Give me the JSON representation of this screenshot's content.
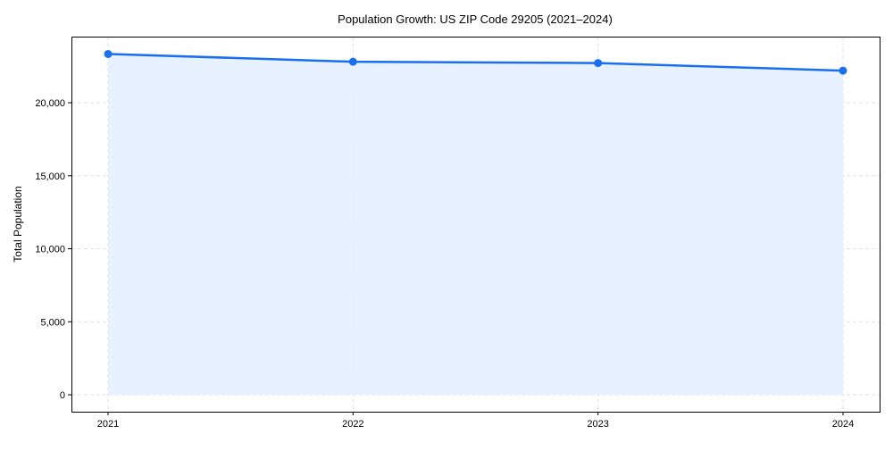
{
  "chart_data": {
    "type": "area",
    "title": "Population Growth: US ZIP Code 29205 (2021–2024)",
    "xlabel": "",
    "ylabel": "Total Population",
    "categories": [
      "2021",
      "2022",
      "2023",
      "2024"
    ],
    "series": [
      {
        "name": "Total Population",
        "values": [
          23340,
          22810,
          22720,
          22200
        ],
        "color": "#1a6ff0",
        "fill": "#e5efff"
      }
    ],
    "yticks": [
      0,
      5000,
      10000,
      15000,
      20000
    ],
    "ytick_labels": [
      "0",
      "5,000",
      "10,000",
      "15,000",
      "20,000"
    ],
    "ylim": [
      -1160,
      24530
    ],
    "grid": true
  }
}
